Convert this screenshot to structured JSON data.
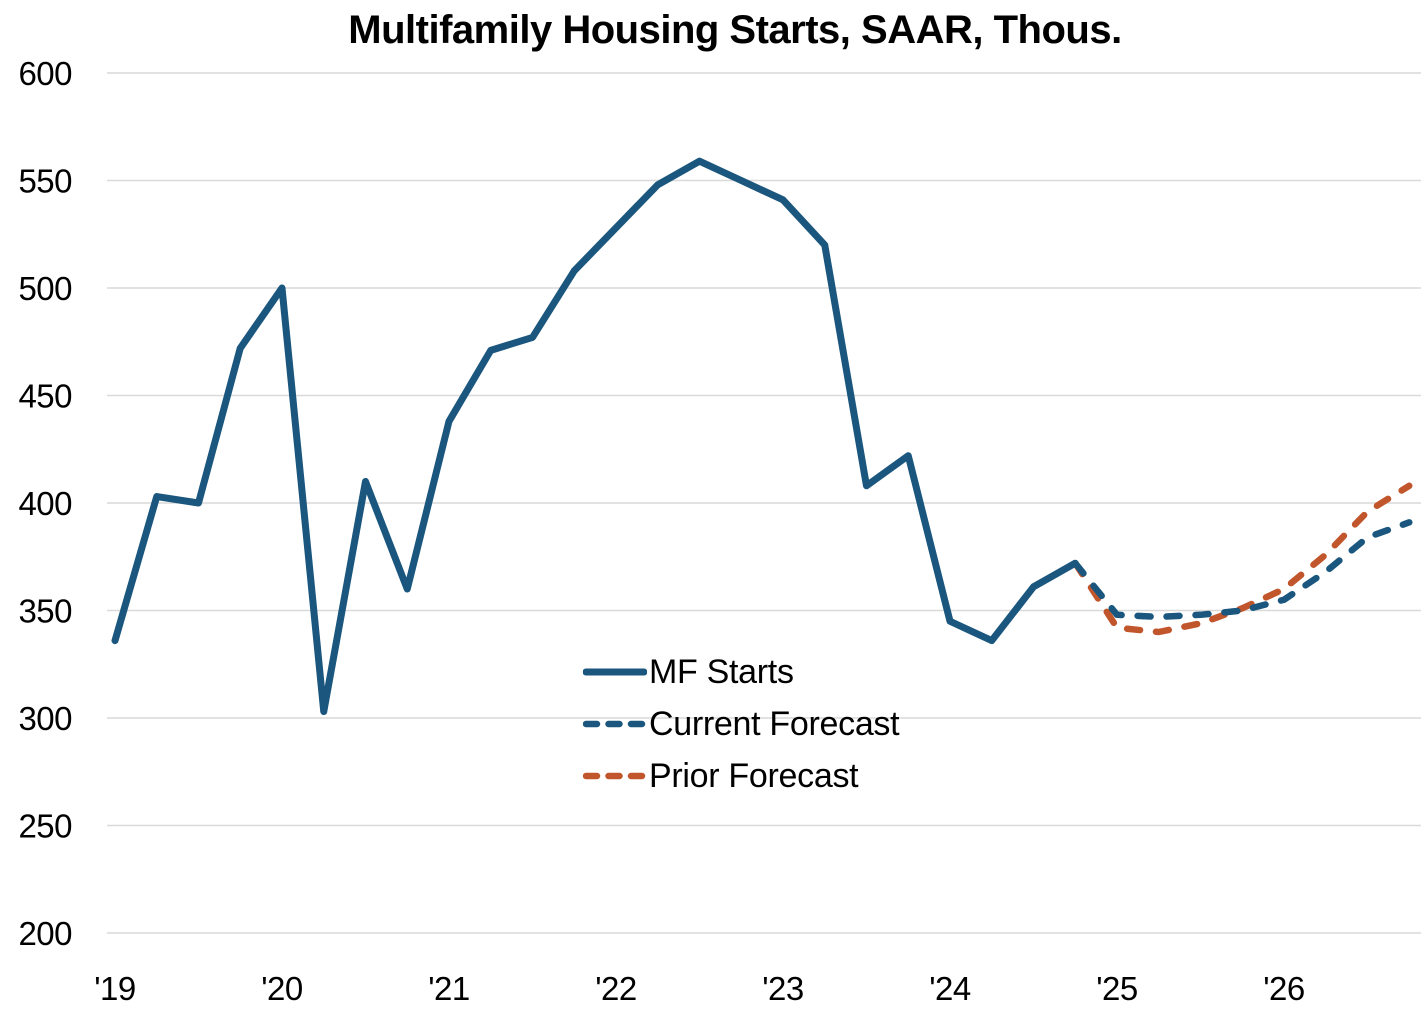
{
  "title": "Multifamily Housing Starts, SAAR, Thous.",
  "chart_data": {
    "type": "line",
    "title": "Multifamily Housing Starts, SAAR, Thous.",
    "x_unit": "quarter",
    "x_labels": [
      "'19",
      "'20",
      "'21",
      "'22",
      "'23",
      "'24",
      "'25",
      "'26"
    ],
    "ylim": [
      200,
      600
    ],
    "yticks": [
      200,
      250,
      300,
      350,
      400,
      450,
      500,
      550,
      600
    ],
    "grid": "horizontal",
    "gridline_color": "#d9d9d9",
    "legend_position": "inside-lower-middle",
    "series": [
      {
        "name": "MF Starts",
        "style": "solid",
        "color": "#1A567D",
        "start_index": 0,
        "values": [
          336,
          403,
          400,
          472,
          500,
          303,
          410,
          360,
          438,
          471,
          477,
          508,
          528,
          548,
          559,
          550,
          541,
          520,
          408,
          422,
          345,
          336,
          361,
          372
        ]
      },
      {
        "name": "Current Forecast",
        "style": "dashed",
        "color": "#1A567D",
        "start_index": 23,
        "values": [
          372,
          348,
          347,
          348,
          350,
          355,
          368,
          384,
          391
        ]
      },
      {
        "name": "Prior Forecast",
        "style": "dashed",
        "color": "#C1552B",
        "start_index": 23,
        "values": [
          372,
          342,
          340,
          344,
          351,
          360,
          376,
          396,
          408
        ]
      }
    ]
  }
}
